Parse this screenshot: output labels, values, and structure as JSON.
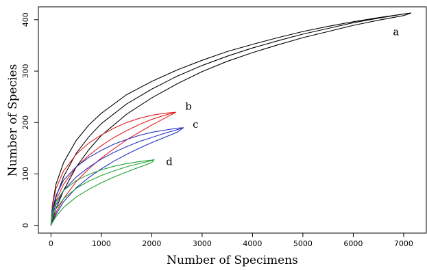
{
  "chart_data": {
    "type": "line",
    "title": "",
    "xlabel": "Number of Specimens",
    "ylabel": "Number of Species",
    "xlim": [
      -250,
      7450
    ],
    "ylim": [
      -15,
      425
    ],
    "x_ticks": [
      0,
      1000,
      2000,
      3000,
      4000,
      5000,
      6000,
      7000
    ],
    "y_ticks": [
      0,
      100,
      200,
      300,
      400
    ],
    "grid": false,
    "legend": "none",
    "series": [
      {
        "name": "a",
        "color": "#000000",
        "x": [
          0,
          25,
          100,
          250,
          500,
          750,
          1000,
          1500,
          2000,
          2500,
          3000,
          3500,
          4000,
          4500,
          5000,
          5500,
          6000,
          6500,
          7000,
          7150
        ],
        "values": [
          0,
          22,
          55,
          95,
          140,
          172,
          198,
          236,
          265,
          290,
          311,
          329,
          345,
          359,
          372,
          383,
          394,
          403,
          411,
          413
        ],
        "upper": [
          0,
          38,
          80,
          122,
          165,
          195,
          218,
          254,
          280,
          302,
          321,
          338,
          352,
          365,
          377,
          387,
          396,
          404,
          411,
          413
        ],
        "lower": [
          0,
          8,
          32,
          68,
          113,
          147,
          175,
          216,
          248,
          275,
          299,
          319,
          336,
          351,
          365,
          377,
          389,
          399,
          408,
          413
        ]
      },
      {
        "name": "b",
        "color": "#e02020",
        "x": [
          0,
          25,
          100,
          250,
          500,
          750,
          1000,
          1250,
          1500,
          1750,
          2000,
          2250,
          2480
        ],
        "values": [
          0,
          20,
          48,
          80,
          113,
          136,
          155,
          171,
          184,
          196,
          206,
          214,
          220
        ],
        "upper": [
          0,
          36,
          72,
          106,
          138,
          160,
          176,
          189,
          200,
          208,
          214,
          218,
          220
        ],
        "lower": [
          0,
          6,
          25,
          52,
          85,
          110,
          131,
          149,
          166,
          181,
          195,
          208,
          220
        ]
      },
      {
        "name": "c",
        "color": "#2030c0",
        "x": [
          0,
          25,
          100,
          250,
          500,
          750,
          1000,
          1250,
          1500,
          1750,
          2000,
          2250,
          2500,
          2630
        ],
        "values": [
          0,
          18,
          40,
          68,
          94,
          113,
          129,
          142,
          153,
          163,
          171,
          179,
          186,
          190
        ],
        "upper": [
          0,
          30,
          58,
          88,
          114,
          132,
          146,
          158,
          167,
          175,
          181,
          185,
          189,
          190
        ],
        "lower": [
          0,
          6,
          21,
          46,
          73,
          93,
          110,
          125,
          138,
          150,
          161,
          171,
          181,
          190
        ]
      },
      {
        "name": "d",
        "color": "#20a030",
        "x": [
          0,
          25,
          100,
          250,
          500,
          750,
          1000,
          1250,
          1500,
          1750,
          2000,
          2050
        ],
        "values": [
          0,
          14,
          32,
          52,
          72,
          86,
          97,
          106,
          114,
          120,
          126,
          128
        ],
        "upper": [
          0,
          23,
          46,
          68,
          87,
          99,
          108,
          115,
          120,
          124,
          127,
          128
        ],
        "lower": [
          0,
          5,
          17,
          35,
          55,
          70,
          83,
          94,
          104,
          113,
          122,
          128
        ]
      }
    ],
    "curve_labels": [
      {
        "text": "a",
        "x": 6850,
        "y": 370
      },
      {
        "text": "b",
        "x": 2730,
        "y": 225
      },
      {
        "text": "c",
        "x": 2870,
        "y": 190
      },
      {
        "text": "d",
        "x": 2350,
        "y": 117
      }
    ]
  }
}
